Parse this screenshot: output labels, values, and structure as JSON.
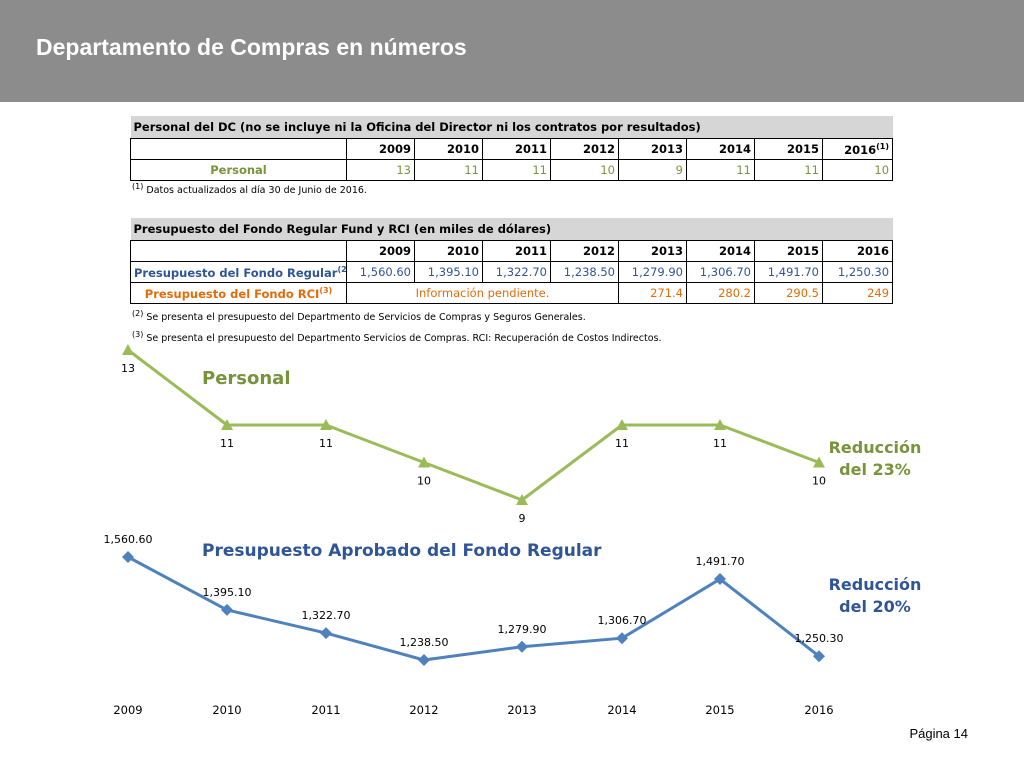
{
  "header": {
    "title": "Departamento de Compras en números"
  },
  "table1": {
    "caption": "Personal del DC (no se incluye ni la Oficina del Director ni los contratos por resultados)",
    "years": [
      "2009",
      "2010",
      "2011",
      "2012",
      "2013",
      "2014",
      "2015",
      "2016"
    ],
    "last_year_sup": "(1)",
    "row_label": "Personal",
    "values": [
      "13",
      "11",
      "11",
      "10",
      "9",
      "11",
      "11",
      "10"
    ],
    "note_sup": "(1)",
    "note": "Datos actualizados al día 30 de Junio de 2016."
  },
  "table2": {
    "caption": "Presupuesto del Fondo Regular Fund y RCI (en miles de dólares)",
    "years": [
      "2009",
      "2010",
      "2011",
      "2012",
      "2013",
      "2014",
      "2015",
      "2016"
    ],
    "row1_label": "Presupuesto del Fondo Regular",
    "row1_sup": "(2)",
    "row1_values": [
      "1,560.60",
      "1,395.10",
      "1,322.70",
      "1,238.50",
      "1,279.90",
      "1,306.70",
      "1,491.70",
      "1,250.30"
    ],
    "row2_label": "Presupuesto del Fondo RCI",
    "row2_sup": "(3)",
    "row2_pending": "Información pendiente.",
    "row2_values": [
      "271.4",
      "280.2",
      "290.5",
      "249"
    ],
    "note2_sup": "(2)",
    "note2": "Se presenta el presupuesto del Departmento de Servicios de Compras y Seguros Generales.",
    "note3_sup": "(3)",
    "note3": "Se presenta el presupuesto del Departmento Servicios de Compras. RCI: Recuperación de Costos Indirectos."
  },
  "chart1": {
    "title": "Personal",
    "reduction": [
      "Reducción",
      "del 23%"
    ]
  },
  "chart2": {
    "title": "Presupuesto Aprobado del Fondo Regular",
    "reduction": [
      "Reducción",
      "del 20%"
    ]
  },
  "chart_data": [
    {
      "type": "line",
      "title": "Personal",
      "x": [
        "2009",
        "2010",
        "2011",
        "2012",
        "2013",
        "2014",
        "2015",
        "2016"
      ],
      "series": [
        {
          "name": "Personal",
          "values": [
            13,
            11,
            11,
            10,
            9,
            11,
            11,
            10
          ],
          "labels": [
            "13",
            "11",
            "11",
            "10",
            "9",
            "11",
            "11",
            "10"
          ],
          "color": "#9bbb59",
          "marker": "triangle"
        }
      ],
      "ylim": [
        9,
        13
      ]
    },
    {
      "type": "line",
      "title": "Presupuesto Aprobado del Fondo Regular",
      "x": [
        "2009",
        "2010",
        "2011",
        "2012",
        "2013",
        "2014",
        "2015",
        "2016"
      ],
      "series": [
        {
          "name": "Presupuesto Aprobado del Fondo Regular",
          "values": [
            1560.6,
            1395.1,
            1322.7,
            1238.5,
            1279.9,
            1306.7,
            1491.7,
            1250.3
          ],
          "labels": [
            "1,560.60",
            "1,395.10",
            "1,322.70",
            "1,238.50",
            "1,279.90",
            "1,306.70",
            "1,491.70",
            "1,250.30"
          ],
          "color": "#4f81bd",
          "marker": "diamond"
        }
      ],
      "ylim": [
        1238.5,
        1560.6
      ]
    }
  ],
  "colors": {
    "header_bg": "#8c8c8c",
    "green": "#77933c",
    "blue": "#2f5597",
    "orange": "#e36c09"
  },
  "footer": {
    "page": "Página 14"
  }
}
